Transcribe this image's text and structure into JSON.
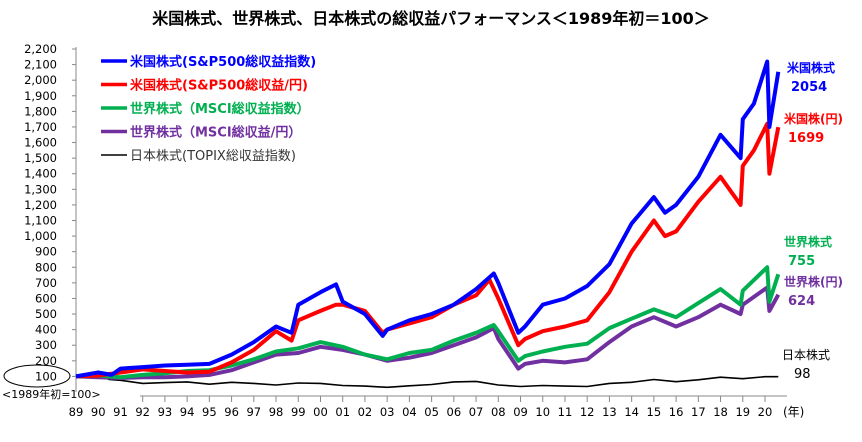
{
  "chart_data": {
    "type": "line",
    "title": "米国株式、世界株式、日本株式の総収益パフォーマンス＜1989年初＝100＞",
    "xlabel": "(年)",
    "ylabel": "",
    "ylim": [
      0,
      2200
    ],
    "xlim": [
      1989,
      2020.6
    ],
    "y_ticks": [
      "2,200",
      "2,100",
      "2,000",
      "1,900",
      "1,800",
      "1,700",
      "1,600",
      "1,500",
      "1,400",
      "1,300",
      "1,200",
      "1,100",
      "1,000",
      "900",
      "800",
      "700",
      "600",
      "500",
      "400",
      "300",
      "200",
      "100"
    ],
    "y_tick_values": [
      2200,
      2100,
      2000,
      1900,
      1800,
      1700,
      1600,
      1500,
      1400,
      1300,
      1200,
      1100,
      1000,
      900,
      800,
      700,
      600,
      500,
      400,
      300,
      200,
      100
    ],
    "base_note": "<1989年初=100>",
    "x_ticks": [
      "89",
      "90",
      "91",
      "92",
      "93",
      "94",
      "95",
      "96",
      "97",
      "98",
      "99",
      "00",
      "01",
      "02",
      "03",
      "04",
      "05",
      "06",
      "07",
      "08",
      "09",
      "10",
      "11",
      "12",
      "13",
      "14",
      "15",
      "16",
      "17",
      "18",
      "19",
      "20"
    ],
    "legend_placement": "top-left",
    "series": [
      {
        "name": "米国株式(S&P500総収益指数)",
        "end_label": "米国株式",
        "end_value": "2054",
        "color": "#0000ff",
        "width": 4,
        "x": [
          1989,
          1990,
          1990.6,
          1991,
          1992,
          1993,
          1994,
          1995,
          1996,
          1997,
          1998,
          1998.7,
          1999,
          2000,
          2000.7,
          2001,
          2002,
          2002.8,
          2003,
          2004,
          2005,
          2006,
          2007,
          2007.8,
          2008,
          2008.9,
          2009.2,
          2010,
          2011,
          2012,
          2013,
          2014,
          2015,
          2015.5,
          2016,
          2017,
          2018,
          2018.9,
          2019,
          2019.5,
          2020.1,
          2020.2,
          2020.6
        ],
        "y": [
          100,
          125,
          110,
          150,
          160,
          170,
          175,
          180,
          240,
          320,
          420,
          380,
          560,
          640,
          690,
          580,
          500,
          360,
          400,
          460,
          500,
          560,
          660,
          760,
          700,
          380,
          420,
          560,
          600,
          680,
          820,
          1080,
          1250,
          1150,
          1200,
          1380,
          1650,
          1500,
          1750,
          1850,
          2120,
          1700,
          2054
        ]
      },
      {
        "name": "米国株式(S&P500総収益/円)",
        "end_label": "米国株(円)",
        "end_value": "1699",
        "color": "#ff0000",
        "width": 4,
        "x": [
          1989,
          1990,
          1991,
          1992,
          1993,
          1994,
          1995,
          1996,
          1997,
          1998,
          1998.7,
          1999,
          2000,
          2000.7,
          2001,
          2002,
          2002.8,
          2003,
          2004,
          2005,
          2006,
          2007,
          2007.6,
          2008,
          2008.9,
          2009.2,
          2010,
          2011,
          2012,
          2013,
          2014,
          2015,
          2015.5,
          2016,
          2017,
          2018,
          2018.9,
          2019,
          2019.5,
          2020.1,
          2020.2,
          2020.6
        ],
        "y": [
          100,
          105,
          125,
          145,
          135,
          125,
          130,
          190,
          270,
          390,
          330,
          460,
          520,
          560,
          560,
          520,
          380,
          400,
          440,
          480,
          560,
          620,
          720,
          600,
          300,
          340,
          390,
          420,
          460,
          640,
          900,
          1100,
          1000,
          1030,
          1220,
          1380,
          1200,
          1450,
          1550,
          1720,
          1400,
          1699
        ]
      },
      {
        "name": "世界株式（MSCI総収益指数）",
        "end_label": "世界株式",
        "end_value": "755",
        "color": "#00b050",
        "width": 4,
        "x": [
          1989,
          1990,
          1991,
          1992,
          1993,
          1994,
          1995,
          1996,
          1997,
          1998,
          1999,
          2000,
          2001,
          2002,
          2003,
          2004,
          2005,
          2006,
          2007,
          2007.8,
          2008,
          2008.9,
          2009.2,
          2010,
          2011,
          2012,
          2013,
          2014,
          2015,
          2016,
          2017,
          2018,
          2018.9,
          2019,
          2020.1,
          2020.2,
          2020.6
        ],
        "y": [
          100,
          105,
          95,
          110,
          120,
          135,
          140,
          170,
          210,
          260,
          280,
          320,
          290,
          240,
          210,
          250,
          270,
          330,
          380,
          430,
          390,
          200,
          230,
          260,
          290,
          310,
          410,
          470,
          530,
          480,
          570,
          660,
          560,
          650,
          800,
          580,
          755
        ]
      },
      {
        "name": "世界株式（MSCI総収益/円）",
        "end_label": "世界株(円)",
        "end_value": "624",
        "color": "#7030a0",
        "width": 4,
        "x": [
          1989,
          1990,
          1991,
          1992,
          1993,
          1994,
          1995,
          1996,
          1997,
          1998,
          1999,
          2000,
          2001,
          2002,
          2003,
          2004,
          2005,
          2006,
          2007,
          2007.8,
          2008,
          2008.9,
          2009.2,
          2010,
          2011,
          2012,
          2013,
          2014,
          2015,
          2016,
          2017,
          2018,
          2018.9,
          2019,
          2020.1,
          2020.2,
          2020.6
        ],
        "y": [
          100,
          95,
          90,
          95,
          95,
          100,
          110,
          140,
          190,
          240,
          250,
          290,
          270,
          240,
          200,
          220,
          250,
          300,
          350,
          410,
          340,
          150,
          180,
          200,
          190,
          210,
          320,
          420,
          480,
          420,
          480,
          560,
          500,
          560,
          670,
          520,
          624
        ]
      },
      {
        "name": "日本株式(TOPIX総収益指数)",
        "end_label": "日本株式",
        "end_value": "98",
        "color": "#000000",
        "width": 1.6,
        "x": [
          1989,
          1989.9,
          1990.5,
          1991,
          1992,
          1993,
          1994,
          1995,
          1996,
          1997,
          1998,
          1999,
          2000,
          2001,
          2002,
          2003,
          2004,
          2005,
          2006,
          2007,
          2008,
          2009,
          2010,
          2011,
          2012,
          2013,
          2014,
          2015,
          2016,
          2017,
          2018,
          2019,
          2020,
          2020.6
        ],
        "y": [
          100,
          115,
          80,
          75,
          55,
          60,
          65,
          50,
          62,
          55,
          45,
          58,
          55,
          42,
          38,
          30,
          40,
          48,
          65,
          68,
          45,
          35,
          42,
          38,
          35,
          55,
          62,
          80,
          66,
          78,
          95,
          85,
          98,
          98
        ]
      }
    ]
  }
}
